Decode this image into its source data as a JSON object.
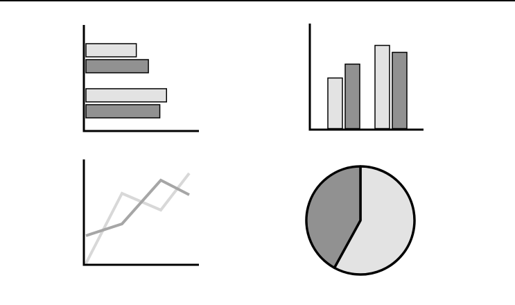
{
  "colors": {
    "light": "#e3e3e3",
    "dark": "#919191",
    "line_light": "#d8d8d8",
    "line_dark": "#a6a6a6",
    "outline": "#000000"
  },
  "chart_data": [
    {
      "type": "bar",
      "orientation": "horizontal",
      "series": [
        {
          "values": [
            75,
            120
          ]
        },
        {
          "values": [
            93,
            110
          ]
        }
      ],
      "xlim": [
        0,
        160
      ]
    },
    {
      "type": "bar",
      "orientation": "vertical",
      "series": [
        {
          "values": [
            73,
            120
          ]
        },
        {
          "values": [
            93,
            110
          ]
        }
      ],
      "ylim": [
        0,
        150
      ]
    },
    {
      "type": "line",
      "x": [
        0,
        1,
        2,
        3
      ],
      "series": [
        {
          "values": [
            0,
            101,
            77,
            130
          ]
        },
        {
          "values": [
            40,
            57,
            120,
            99
          ]
        }
      ],
      "ylim": [
        0,
        150
      ]
    },
    {
      "type": "pie",
      "values": [
        58,
        42
      ]
    }
  ]
}
